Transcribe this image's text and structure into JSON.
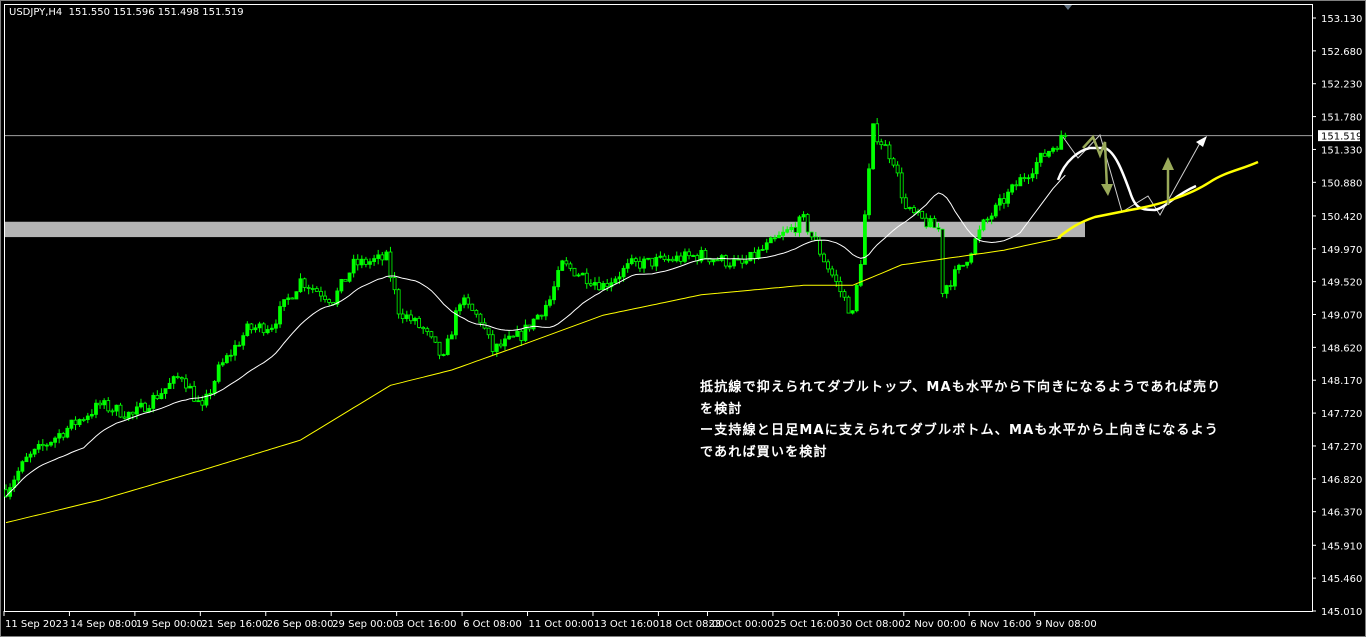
{
  "header": {
    "symbol": "USDJPY,H4",
    "open": "151.550",
    "high": "151.596",
    "low": "151.498",
    "close": "151.519"
  },
  "annotation": {
    "lines": [
      "抵抗線で抑えられてダブルトップ、MAも水平から下向きになるようであれば売り",
      "を検討",
      "ー支持線と日足MAに支えられてダブルボトム、MAも水平から上向きになるよう",
      "であれば買いを検討"
    ]
  },
  "colors": {
    "background": "#000000",
    "bull": "#00ff00",
    "bear_outline": "#00ff00",
    "ma_short": "#ffffff",
    "ma_long": "#ffff00",
    "zone": "#b4b4b4",
    "arrow_olive": "#9aaa5a",
    "price_line": "#a0a0a0"
  },
  "chart_data": {
    "type": "candlestick",
    "symbol": "USDJPY",
    "timeframe": "H4",
    "ylim": [
      145.01,
      153.13
    ],
    "y_ticks": [
      "153.130",
      "152.680",
      "152.230",
      "151.780",
      "151.330",
      "150.880",
      "150.420",
      "149.970",
      "149.520",
      "149.070",
      "148.620",
      "148.170",
      "147.720",
      "147.270",
      "146.820",
      "146.370",
      "145.910",
      "145.460",
      "145.010"
    ],
    "x_ticks": [
      {
        "bar": 0,
        "label": "11 Sep 2023"
      },
      {
        "bar": 16,
        "label": "14 Sep 08:00"
      },
      {
        "bar": 32,
        "label": "19 Sep 00:00"
      },
      {
        "bar": 48,
        "label": "21 Sep 16:00"
      },
      {
        "bar": 64,
        "label": "26 Sep 08:00"
      },
      {
        "bar": 80,
        "label": "29 Sep 00:00"
      },
      {
        "bar": 96,
        "label": "3 Oct 16:00"
      },
      {
        "bar": 112,
        "label": "6 Oct 08:00"
      },
      {
        "bar": 128,
        "label": "11 Oct 00:00"
      },
      {
        "bar": 144,
        "label": "13 Oct 16:00"
      },
      {
        "bar": 160,
        "label": "18 Oct 08:00"
      },
      {
        "bar": 172,
        "label": "23 Oct 00:00"
      },
      {
        "bar": 188,
        "label": "25 Oct 16:00"
      },
      {
        "bar": 204,
        "label": "30 Oct 08:00"
      },
      {
        "bar": 220,
        "label": "2 Nov 00:00"
      },
      {
        "bar": 236,
        "label": "6 Nov 16:00"
      },
      {
        "bar": 252,
        "label": "9 Nov 08:00"
      }
    ],
    "approx_close_path": [
      [
        0,
        146.67
      ],
      [
        5,
        147.08
      ],
      [
        11,
        147.35
      ],
      [
        23,
        147.83
      ],
      [
        31,
        147.69
      ],
      [
        43,
        148.24
      ],
      [
        48,
        147.76
      ],
      [
        52,
        148.31
      ],
      [
        59,
        148.86
      ],
      [
        65,
        148.93
      ],
      [
        72,
        149.54
      ],
      [
        80,
        149.27
      ],
      [
        85,
        149.75
      ],
      [
        93,
        149.84
      ],
      [
        96,
        149.13
      ],
      [
        102,
        148.86
      ],
      [
        107,
        148.45
      ],
      [
        111,
        149.27
      ],
      [
        116,
        149.0
      ],
      [
        119,
        148.58
      ],
      [
        126,
        148.79
      ],
      [
        133,
        149.27
      ],
      [
        136,
        149.75
      ],
      [
        146,
        149.47
      ],
      [
        153,
        149.75
      ],
      [
        170,
        149.88
      ],
      [
        180,
        149.75
      ],
      [
        190,
        150.16
      ],
      [
        195,
        150.36
      ],
      [
        202,
        149.61
      ],
      [
        207,
        149.06
      ],
      [
        209,
        149.82
      ],
      [
        212,
        151.6
      ],
      [
        217,
        151.19
      ],
      [
        220,
        150.5
      ],
      [
        224,
        150.36
      ],
      [
        228,
        150.23
      ],
      [
        229,
        149.41
      ],
      [
        234,
        149.75
      ],
      [
        239,
        150.3
      ],
      [
        244,
        150.64
      ],
      [
        248,
        150.91
      ],
      [
        255,
        151.32
      ],
      [
        259,
        151.519
      ]
    ],
    "long_ma_path": [
      [
        0,
        146.22
      ],
      [
        23,
        146.53
      ],
      [
        48,
        146.94
      ],
      [
        72,
        147.35
      ],
      [
        94,
        148.1
      ],
      [
        109,
        148.31
      ],
      [
        126,
        148.65
      ],
      [
        146,
        149.06
      ],
      [
        170,
        149.34
      ],
      [
        195,
        149.47
      ],
      [
        207,
        149.47
      ],
      [
        219,
        149.75
      ],
      [
        244,
        149.95
      ],
      [
        258,
        150.12
      ]
    ],
    "short_ma_period": 20,
    "resistance_zone": [
      150.13,
      150.34
    ],
    "current_price": 151.519
  }
}
